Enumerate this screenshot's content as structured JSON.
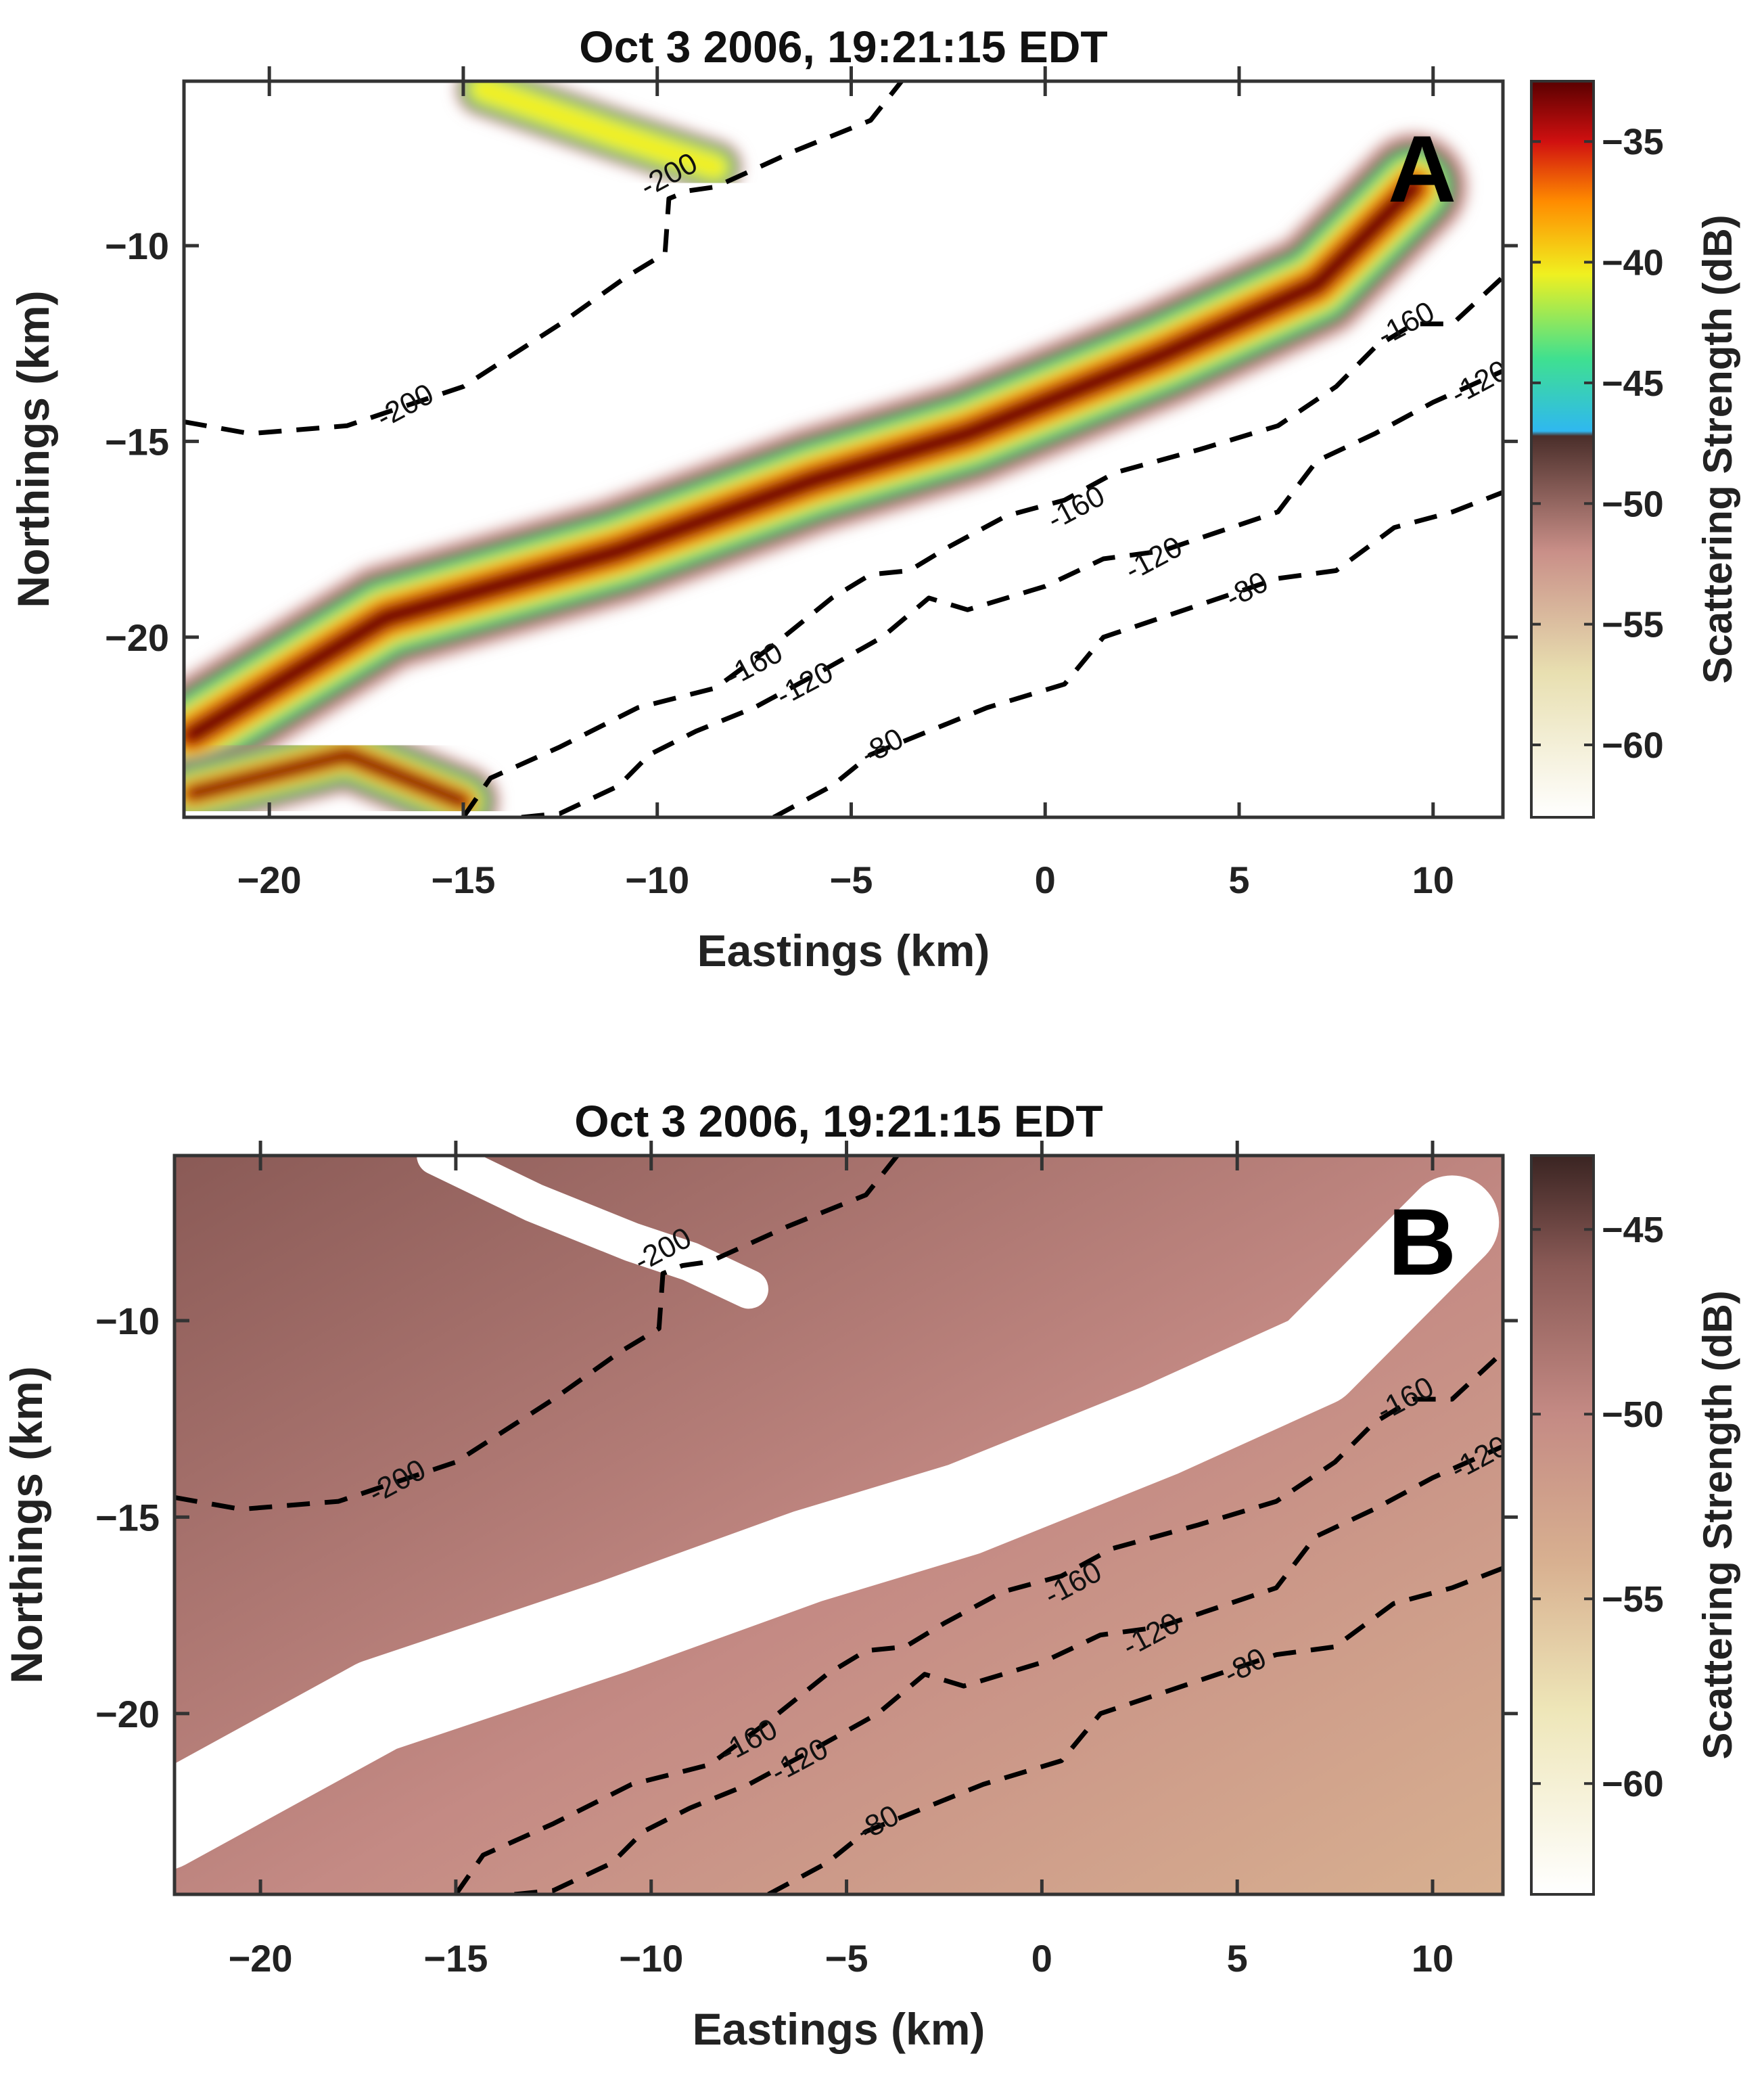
{
  "chart_data": [
    {
      "type": "heatmap",
      "panel_label": "A",
      "title": "Oct 3 2006, 19:21:15 EDT",
      "xlabel": "Eastings (km)",
      "ylabel": "Northings (km)",
      "xlim": [
        -22.2,
        11.8
      ],
      "ylim": [
        -24.6,
        -5.8
      ],
      "xticks": [
        -20,
        -15,
        -10,
        -5,
        0,
        5,
        10
      ],
      "yticks": [
        -10,
        -15,
        -20
      ],
      "colorbar": {
        "label": "Scattering Strength (dB)",
        "range": [
          -63,
          -32.5
        ],
        "ticks": [
          -35,
          -40,
          -45,
          -50,
          -55,
          -60
        ],
        "stops": [
          {
            "value": -63,
            "color": "#ffffff"
          },
          {
            "value": -57,
            "color": "#e8dfb0"
          },
          {
            "value": -52,
            "color": "#c98f88"
          },
          {
            "value": -47.2,
            "color": "#4a2e2a"
          },
          {
            "value": -47.0,
            "color": "#2fb8f0"
          },
          {
            "value": -44,
            "color": "#3fe090"
          },
          {
            "value": -40.5,
            "color": "#f0f020"
          },
          {
            "value": -37.5,
            "color": "#ff8c00"
          },
          {
            "value": -35,
            "color": "#d01010"
          },
          {
            "value": -32.5,
            "color": "#5a0000"
          }
        ]
      },
      "features": [
        {
          "name": "main-scattering-band",
          "points": [
            [
              -22,
              -22.5
            ],
            [
              -17,
              -19.5
            ],
            [
              -11,
              -17.8
            ],
            [
              -6,
              -16.0
            ],
            [
              -2,
              -14.8
            ],
            [
              3,
              -12.8
            ],
            [
              7,
              -11.0
            ],
            [
              9.5,
              -8.5
            ]
          ],
          "peak_db": -33,
          "width_km": 1.8
        },
        {
          "name": "lower-left-band",
          "points": [
            [
              -22,
              -24.0
            ],
            [
              -18,
              -23.0
            ],
            [
              -15,
              -24.2
            ]
          ],
          "peak_db": -34,
          "width_km": 1.2
        },
        {
          "name": "upper-left-patch",
          "points": [
            [
              -14.5,
              -6.0
            ],
            [
              -11,
              -7.2
            ],
            [
              -8.5,
              -8.0
            ]
          ],
          "peak_db": -43,
          "width_km": 0.9
        }
      ],
      "contours": [
        {
          "label": "-200",
          "points": [
            [
              -22.2,
              -14.5
            ],
            [
              -20.5,
              -14.8
            ],
            [
              -18,
              -14.6
            ],
            [
              -15,
              -13.6
            ],
            [
              -12.5,
              -12.0
            ],
            [
              -10.8,
              -10.8
            ],
            [
              -9.8,
              -10.2
            ],
            [
              -9.7,
              -8.8
            ],
            [
              -9.2,
              -8.6
            ],
            [
              -8.5,
              -8.5
            ],
            [
              -6.5,
              -7.6
            ],
            [
              -4.5,
              -6.8
            ],
            [
              -3.7,
              -5.8
            ]
          ],
          "label_at": [
            -16.5,
            -14.1
          ],
          "label_at_2": [
            -9.7,
            -8.2
          ]
        },
        {
          "label": "-160",
          "points": [
            [
              -15,
              -24.6
            ],
            [
              -14.3,
              -23.6
            ],
            [
              -12.5,
              -22.8
            ],
            [
              -10.5,
              -21.8
            ],
            [
              -8.5,
              -21.3
            ],
            [
              -7,
              -20.2
            ],
            [
              -5.5,
              -19.0
            ],
            [
              -4.5,
              -18.4
            ],
            [
              -3.5,
              -18.3
            ],
            [
              -2.5,
              -17.7
            ],
            [
              -1,
              -16.9
            ],
            [
              0.5,
              -16.5
            ],
            [
              1.8,
              -15.8
            ],
            [
              4,
              -15.2
            ],
            [
              6,
              -14.6
            ],
            [
              7.5,
              -13.6
            ],
            [
              8.5,
              -12.6
            ],
            [
              9.5,
              -12.0
            ],
            [
              10.5,
              -12.0
            ],
            [
              11.8,
              -10.8
            ]
          ],
          "label_at": [
            -7.5,
            -20.7
          ],
          "label_at_2": [
            0.8,
            -16.7
          ],
          "label_at_3": [
            9.3,
            -12.0
          ]
        },
        {
          "label": "-120",
          "points": [
            [
              -13.5,
              -24.6
            ],
            [
              -12.5,
              -24.5
            ],
            [
              -11,
              -23.8
            ],
            [
              -10.2,
              -23.0
            ],
            [
              -9,
              -22.4
            ],
            [
              -7.5,
              -21.8
            ],
            [
              -6,
              -21.0
            ],
            [
              -4.2,
              -20.0
            ],
            [
              -3,
              -19.0
            ],
            [
              -2,
              -19.3
            ],
            [
              0,
              -18.7
            ],
            [
              1.5,
              -18.0
            ],
            [
              3,
              -17.8
            ],
            [
              4.5,
              -17.3
            ],
            [
              6,
              -16.8
            ],
            [
              7,
              -15.5
            ],
            [
              8.5,
              -14.8
            ],
            [
              10,
              -14.0
            ],
            [
              11.8,
              -13.2
            ]
          ],
          "label_at": [
            -6.2,
            -21.2
          ],
          "label_at_2": [
            2.8,
            -18.0
          ],
          "label_at_3": [
            11.2,
            -13.5
          ]
        },
        {
          "label": "-80",
          "points": [
            [
              -7,
              -24.6
            ],
            [
              -5.5,
              -23.8
            ],
            [
              -4.5,
              -23.0
            ],
            [
              -3,
              -22.4
            ],
            [
              -1.5,
              -21.8
            ],
            [
              0.5,
              -21.2
            ],
            [
              1.5,
              -20.0
            ],
            [
              3,
              -19.5
            ],
            [
              4.5,
              -19.0
            ],
            [
              6,
              -18.5
            ],
            [
              7.5,
              -18.3
            ],
            [
              9,
              -17.2
            ],
            [
              10.5,
              -16.8
            ],
            [
              11.8,
              -16.3
            ]
          ],
          "label_at": [
            -4.2,
            -22.8
          ],
          "label_at_2": [
            5.2,
            -18.8
          ]
        }
      ]
    },
    {
      "type": "heatmap",
      "panel_label": "B",
      "title": "Oct 3 2006, 19:21:15 EDT",
      "xlabel": "Eastings (km)",
      "ylabel": "Northings (km)",
      "xlim": [
        -22.2,
        11.8
      ],
      "ylim": [
        -24.6,
        -5.8
      ],
      "xticks": [
        -20,
        -15,
        -10,
        -5,
        0,
        5,
        10
      ],
      "yticks": [
        -10,
        -15,
        -20
      ],
      "colorbar": {
        "label": "Scattering Strength (dB)",
        "range": [
          -63,
          -43
        ],
        "ticks": [
          -45,
          -50,
          -55,
          -60
        ],
        "stops": [
          {
            "value": -63,
            "color": "#ffffff"
          },
          {
            "value": -58,
            "color": "#eee6b8"
          },
          {
            "value": -54,
            "color": "#d8b090"
          },
          {
            "value": -50,
            "color": "#c48a84"
          },
          {
            "value": -46,
            "color": "#8a5a56"
          },
          {
            "value": -43,
            "color": "#3a2422"
          }
        ]
      },
      "background_db": -49,
      "masked_band": {
        "points": [
          [
            -22.5,
            -22.8
          ],
          [
            -17,
            -19.8
          ],
          [
            -11,
            -17.8
          ],
          [
            -6,
            -16.0
          ],
          [
            -2,
            -14.8
          ],
          [
            3,
            -12.8
          ],
          [
            7,
            -11.0
          ],
          [
            10.5,
            -7.5
          ]
        ],
        "width_km": 2.4
      },
      "masked_patches": [
        {
          "points": [
            [
              -15.5,
              -5.8
            ],
            [
              -13,
              -7.0
            ],
            [
              -10.5,
              -8.0
            ],
            [
              -9,
              -8.5
            ],
            [
              -7.5,
              -9.2
            ]
          ],
          "width_km": 1.0
        }
      ],
      "contours": [
        {
          "label": "-200",
          "points": [
            [
              -22.2,
              -14.5
            ],
            [
              -20.5,
              -14.8
            ],
            [
              -18,
              -14.6
            ],
            [
              -15,
              -13.6
            ],
            [
              -12.5,
              -12.0
            ],
            [
              -10.8,
              -10.8
            ],
            [
              -9.8,
              -10.2
            ],
            [
              -9.7,
              -8.8
            ],
            [
              -9.2,
              -8.6
            ],
            [
              -8.5,
              -8.5
            ],
            [
              -6.5,
              -7.6
            ],
            [
              -4.5,
              -6.8
            ],
            [
              -3.7,
              -5.8
            ]
          ],
          "label_at": [
            -16.5,
            -14.1
          ],
          "label_at_2": [
            -9.7,
            -8.2
          ]
        },
        {
          "label": "-160",
          "points": [
            [
              -15,
              -24.6
            ],
            [
              -14.3,
              -23.6
            ],
            [
              -12.5,
              -22.8
            ],
            [
              -10.5,
              -21.8
            ],
            [
              -8.5,
              -21.3
            ],
            [
              -7,
              -20.2
            ],
            [
              -5.5,
              -19.0
            ],
            [
              -4.5,
              -18.4
            ],
            [
              -3.5,
              -18.3
            ],
            [
              -2.5,
              -17.7
            ],
            [
              -1,
              -16.9
            ],
            [
              0.5,
              -16.5
            ],
            [
              1.8,
              -15.8
            ],
            [
              4,
              -15.2
            ],
            [
              6,
              -14.6
            ],
            [
              7.5,
              -13.6
            ],
            [
              8.5,
              -12.6
            ],
            [
              9.5,
              -12.0
            ],
            [
              10.5,
              -12.0
            ],
            [
              11.8,
              -10.8
            ]
          ],
          "label_at": [
            -7.5,
            -20.7
          ],
          "label_at_2": [
            0.8,
            -16.7
          ],
          "label_at_3": [
            9.3,
            -12.0
          ]
        },
        {
          "label": "-120",
          "points": [
            [
              -13.5,
              -24.6
            ],
            [
              -12.5,
              -24.5
            ],
            [
              -11,
              -23.8
            ],
            [
              -10.2,
              -23.0
            ],
            [
              -9,
              -22.4
            ],
            [
              -7.5,
              -21.8
            ],
            [
              -6,
              -21.0
            ],
            [
              -4.2,
              -20.0
            ],
            [
              -3,
              -19.0
            ],
            [
              -2,
              -19.3
            ],
            [
              0,
              -18.7
            ],
            [
              1.5,
              -18.0
            ],
            [
              3,
              -17.8
            ],
            [
              4.5,
              -17.3
            ],
            [
              6,
              -16.8
            ],
            [
              7,
              -15.5
            ],
            [
              8.5,
              -14.8
            ],
            [
              10,
              -14.0
            ],
            [
              11.8,
              -13.2
            ]
          ],
          "label_at": [
            -6.2,
            -21.2
          ],
          "label_at_2": [
            2.8,
            -18.0
          ],
          "label_at_3": [
            11.2,
            -13.5
          ]
        },
        {
          "label": "-80",
          "points": [
            [
              -7,
              -24.6
            ],
            [
              -5.5,
              -23.8
            ],
            [
              -4.5,
              -23.0
            ],
            [
              -3,
              -22.4
            ],
            [
              -1.5,
              -21.8
            ],
            [
              0.5,
              -21.2
            ],
            [
              1.5,
              -20.0
            ],
            [
              3,
              -19.5
            ],
            [
              4.5,
              -19.0
            ],
            [
              6,
              -18.5
            ],
            [
              7.5,
              -18.3
            ],
            [
              9,
              -17.2
            ],
            [
              10.5,
              -16.8
            ],
            [
              11.8,
              -16.3
            ]
          ],
          "label_at": [
            -4.2,
            -22.8
          ],
          "label_at_2": [
            5.2,
            -18.8
          ]
        }
      ]
    }
  ]
}
